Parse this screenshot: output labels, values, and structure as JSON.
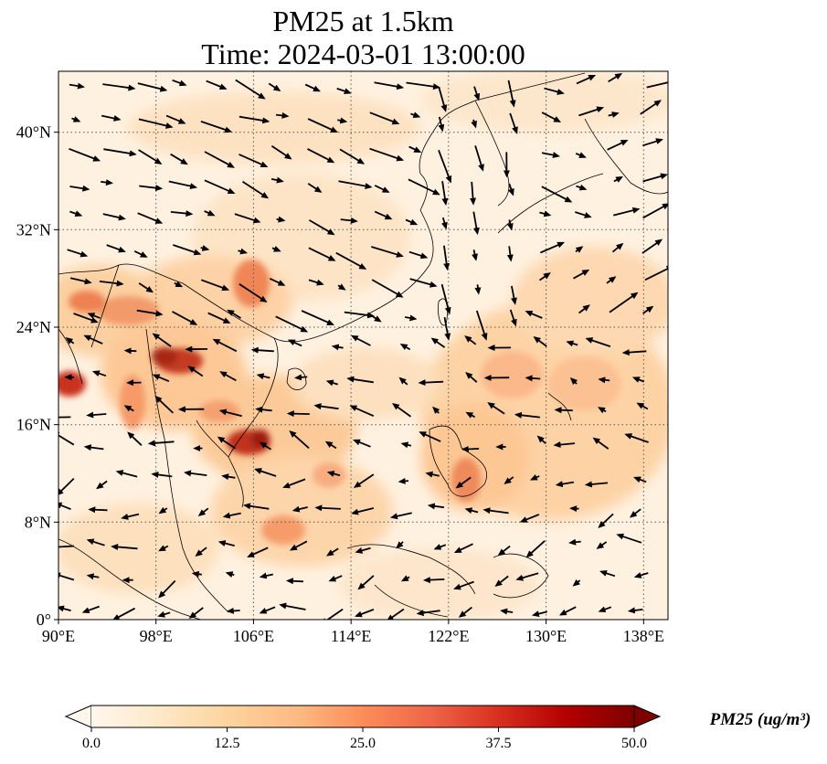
{
  "title_line1": "PM25 at 1.5km",
  "title_line2": "Time: 2024-03-01 13:00:00",
  "map": {
    "lon_range": [
      90,
      140
    ],
    "lat_range": [
      0,
      45
    ],
    "lon_ticks": [
      "90°E",
      "98°E",
      "106°E",
      "114°E",
      "122°E",
      "130°E",
      "138°E"
    ],
    "lon_tick_values": [
      90,
      98,
      106,
      114,
      122,
      130,
      138
    ],
    "lat_ticks": [
      "0°",
      "8°N",
      "16°N",
      "24°N",
      "32°N",
      "40°N"
    ],
    "lat_tick_values": [
      0,
      8,
      16,
      24,
      32,
      40
    ],
    "gridlines": "dotted",
    "coastlines": true,
    "wind_vectors": true
  },
  "colorbar": {
    "title": "PM25 (ug/m³)",
    "min": 0.0,
    "max": 50.0,
    "ticks": [
      "0.0",
      "12.5",
      "25.0",
      "37.5",
      "50.0"
    ],
    "colormap": "OrRd",
    "extend": "both",
    "colors": [
      "#fff7ec",
      "#fee8c8",
      "#fdd49e",
      "#fdbb84",
      "#fc8d59",
      "#ef6548",
      "#d7301f",
      "#b30000",
      "#7f0000"
    ]
  }
}
